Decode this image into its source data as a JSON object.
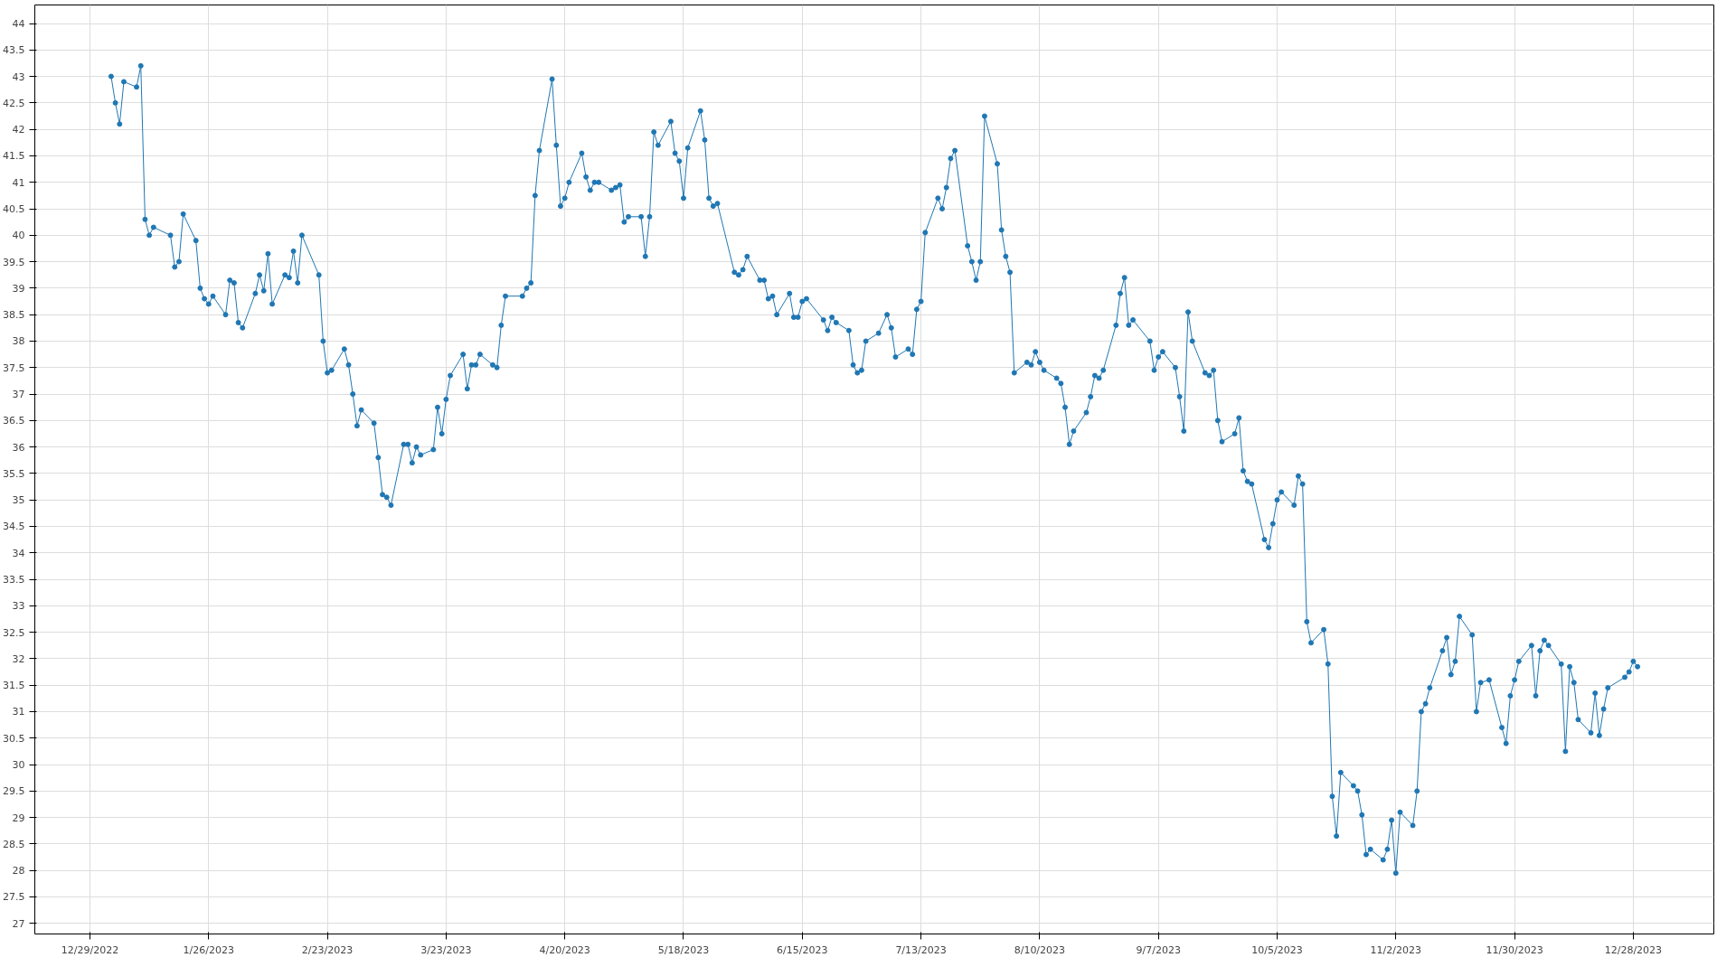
{
  "chart_data": {
    "type": "line",
    "marker": "circle",
    "line_style": "solid",
    "grid": true,
    "color": "#1f77b4",
    "xlim": [
      "2022-12-16",
      "2024-01-16"
    ],
    "ylim": [
      26.8,
      44.35
    ],
    "xticks": [
      {
        "value": "2022-12-29",
        "label": "12/29/2022"
      },
      {
        "value": "2023-01-26",
        "label": "1/26/2023"
      },
      {
        "value": "2023-02-23",
        "label": "2/23/2023"
      },
      {
        "value": "2023-03-23",
        "label": "3/23/2023"
      },
      {
        "value": "2023-04-20",
        "label": "4/20/2023"
      },
      {
        "value": "2023-05-18",
        "label": "5/18/2023"
      },
      {
        "value": "2023-06-15",
        "label": "6/15/2023"
      },
      {
        "value": "2023-07-13",
        "label": "7/13/2023"
      },
      {
        "value": "2023-08-10",
        "label": "8/10/2023"
      },
      {
        "value": "2023-09-07",
        "label": "9/7/2023"
      },
      {
        "value": "2023-10-05",
        "label": "10/5/2023"
      },
      {
        "value": "2023-11-02",
        "label": "11/2/2023"
      },
      {
        "value": "2023-11-30",
        "label": "11/30/2023"
      },
      {
        "value": "2023-12-28",
        "label": "12/28/2023"
      }
    ],
    "yticks": [
      27,
      27.5,
      28,
      28.5,
      29,
      29.5,
      30,
      30.5,
      31,
      31.5,
      32,
      32.5,
      33,
      33.5,
      34,
      34.5,
      35,
      35.5,
      36,
      36.5,
      37,
      37.5,
      38,
      38.5,
      39,
      39.5,
      40,
      40.5,
      41,
      41.5,
      42,
      42.5,
      43,
      43.5,
      44
    ],
    "x": [
      "2023-01-03",
      "2023-01-04",
      "2023-01-05",
      "2023-01-06",
      "2023-01-09",
      "2023-01-10",
      "2023-01-11",
      "2023-01-12",
      "2023-01-13",
      "2023-01-17",
      "2023-01-18",
      "2023-01-19",
      "2023-01-20",
      "2023-01-23",
      "2023-01-24",
      "2023-01-25",
      "2023-01-26",
      "2023-01-27",
      "2023-01-30",
      "2023-01-31",
      "2023-02-01",
      "2023-02-02",
      "2023-02-03",
      "2023-02-06",
      "2023-02-07",
      "2023-02-08",
      "2023-02-09",
      "2023-02-10",
      "2023-02-13",
      "2023-02-14",
      "2023-02-15",
      "2023-02-16",
      "2023-02-17",
      "2023-02-21",
      "2023-02-22",
      "2023-02-23",
      "2023-02-24",
      "2023-02-27",
      "2023-02-28",
      "2023-03-01",
      "2023-03-02",
      "2023-03-03",
      "2023-03-06",
      "2023-03-07",
      "2023-03-08",
      "2023-03-09",
      "2023-03-10",
      "2023-03-13",
      "2023-03-14",
      "2023-03-15",
      "2023-03-16",
      "2023-03-17",
      "2023-03-20",
      "2023-03-21",
      "2023-03-22",
      "2023-03-23",
      "2023-03-24",
      "2023-03-27",
      "2023-03-28",
      "2023-03-29",
      "2023-03-30",
      "2023-03-31",
      "2023-04-03",
      "2023-04-04",
      "2023-04-05",
      "2023-04-06",
      "2023-04-10",
      "2023-04-11",
      "2023-04-12",
      "2023-04-13",
      "2023-04-14",
      "2023-04-17",
      "2023-04-18",
      "2023-04-19",
      "2023-04-20",
      "2023-04-21",
      "2023-04-24",
      "2023-04-25",
      "2023-04-26",
      "2023-04-27",
      "2023-04-28",
      "2023-05-01",
      "2023-05-02",
      "2023-05-03",
      "2023-05-04",
      "2023-05-05",
      "2023-05-08",
      "2023-05-09",
      "2023-05-10",
      "2023-05-11",
      "2023-05-12",
      "2023-05-15",
      "2023-05-16",
      "2023-05-17",
      "2023-05-18",
      "2023-05-19",
      "2023-05-22",
      "2023-05-23",
      "2023-05-24",
      "2023-05-25",
      "2023-05-26",
      "2023-05-30",
      "2023-05-31",
      "2023-06-01",
      "2023-06-02",
      "2023-06-05",
      "2023-06-06",
      "2023-06-07",
      "2023-06-08",
      "2023-06-09",
      "2023-06-12",
      "2023-06-13",
      "2023-06-14",
      "2023-06-15",
      "2023-06-16",
      "2023-06-20",
      "2023-06-21",
      "2023-06-22",
      "2023-06-23",
      "2023-06-26",
      "2023-06-27",
      "2023-06-28",
      "2023-06-29",
      "2023-06-30",
      "2023-07-03",
      "2023-07-05",
      "2023-07-06",
      "2023-07-07",
      "2023-07-10",
      "2023-07-11",
      "2023-07-12",
      "2023-07-13",
      "2023-07-14",
      "2023-07-17",
      "2023-07-18",
      "2023-07-19",
      "2023-07-20",
      "2023-07-21",
      "2023-07-24",
      "2023-07-25",
      "2023-07-26",
      "2023-07-27",
      "2023-07-28",
      "2023-07-31",
      "2023-08-01",
      "2023-08-02",
      "2023-08-03",
      "2023-08-04",
      "2023-08-07",
      "2023-08-08",
      "2023-08-09",
      "2023-08-10",
      "2023-08-11",
      "2023-08-14",
      "2023-08-15",
      "2023-08-16",
      "2023-08-17",
      "2023-08-18",
      "2023-08-21",
      "2023-08-22",
      "2023-08-23",
      "2023-08-24",
      "2023-08-25",
      "2023-08-28",
      "2023-08-29",
      "2023-08-30",
      "2023-08-31",
      "2023-09-01",
      "2023-09-05",
      "2023-09-06",
      "2023-09-07",
      "2023-09-08",
      "2023-09-11",
      "2023-09-12",
      "2023-09-13",
      "2023-09-14",
      "2023-09-15",
      "2023-09-18",
      "2023-09-19",
      "2023-09-20",
      "2023-09-21",
      "2023-09-22",
      "2023-09-25",
      "2023-09-26",
      "2023-09-27",
      "2023-09-28",
      "2023-09-29",
      "2023-10-02",
      "2023-10-03",
      "2023-10-04",
      "2023-10-05",
      "2023-10-06",
      "2023-10-09",
      "2023-10-10",
      "2023-10-11",
      "2023-10-12",
      "2023-10-13",
      "2023-10-16",
      "2023-10-17",
      "2023-10-18",
      "2023-10-19",
      "2023-10-20",
      "2023-10-23",
      "2023-10-24",
      "2023-10-25",
      "2023-10-26",
      "2023-10-27",
      "2023-10-30",
      "2023-10-31",
      "2023-11-01",
      "2023-11-02",
      "2023-11-03",
      "2023-11-06",
      "2023-11-07",
      "2023-11-08",
      "2023-11-09",
      "2023-11-10",
      "2023-11-13",
      "2023-11-14",
      "2023-11-15",
      "2023-11-16",
      "2023-11-17",
      "2023-11-20",
      "2023-11-21",
      "2023-11-22",
      "2023-11-24",
      "2023-11-27",
      "2023-11-28",
      "2023-11-29",
      "2023-11-30",
      "2023-12-01",
      "2023-12-04",
      "2023-12-05",
      "2023-12-06",
      "2023-12-07",
      "2023-12-08",
      "2023-12-11",
      "2023-12-12",
      "2023-12-13",
      "2023-12-14",
      "2023-12-15",
      "2023-12-18",
      "2023-12-19",
      "2023-12-20",
      "2023-12-21",
      "2023-12-22",
      "2023-12-26",
      "2023-12-27",
      "2023-12-28",
      "2023-12-29"
    ],
    "values": [
      43.0,
      42.5,
      42.1,
      42.9,
      42.8,
      43.2,
      40.3,
      40.0,
      40.15,
      40.0,
      39.4,
      39.5,
      40.4,
      39.9,
      39.0,
      38.8,
      38.7,
      38.85,
      38.5,
      39.15,
      39.1,
      38.35,
      38.25,
      38.9,
      39.25,
      38.95,
      39.65,
      38.7,
      39.25,
      39.2,
      39.7,
      39.1,
      40.0,
      39.25,
      38.0,
      37.4,
      37.45,
      37.85,
      37.55,
      37.0,
      36.4,
      36.7,
      36.45,
      35.8,
      35.1,
      35.05,
      34.9,
      36.05,
      36.05,
      35.7,
      36.0,
      35.85,
      35.95,
      36.75,
      36.25,
      36.9,
      37.35,
      37.75,
      37.1,
      37.55,
      37.55,
      37.75,
      37.55,
      37.5,
      38.3,
      38.85,
      38.85,
      39.0,
      39.1,
      40.75,
      41.6,
      42.95,
      41.7,
      40.55,
      40.7,
      41.0,
      41.55,
      41.1,
      40.85,
      41.0,
      41.0,
      40.85,
      40.9,
      40.95,
      40.25,
      40.35,
      40.35,
      39.6,
      40.35,
      41.95,
      41.7,
      42.15,
      41.55,
      41.4,
      40.7,
      41.65,
      42.35,
      41.8,
      40.7,
      40.55,
      40.6,
      39.3,
      39.25,
      39.35,
      39.6,
      39.15,
      39.15,
      38.8,
      38.85,
      38.5,
      38.9,
      38.45,
      38.45,
      38.75,
      38.8,
      38.4,
      38.2,
      38.45,
      38.35,
      38.2,
      37.55,
      37.4,
      37.45,
      38.0,
      38.15,
      38.5,
      38.25,
      37.7,
      37.85,
      37.75,
      38.6,
      38.75,
      40.05,
      40.7,
      40.5,
      40.9,
      41.45,
      41.6,
      39.8,
      39.5,
      39.15,
      39.5,
      42.25,
      41.35,
      40.1,
      39.6,
      39.3,
      37.4,
      37.6,
      37.55,
      37.8,
      37.6,
      37.45,
      37.3,
      37.2,
      36.75,
      36.05,
      36.3,
      36.65,
      36.95,
      37.35,
      37.3,
      37.45,
      38.3,
      38.9,
      39.2,
      38.3,
      38.4,
      38.0,
      37.45,
      37.7,
      37.8,
      37.5,
      36.95,
      36.3,
      38.55,
      38.0,
      37.4,
      37.35,
      37.45,
      36.5,
      36.1,
      36.25,
      36.55,
      35.55,
      35.35,
      35.3,
      34.25,
      34.1,
      34.55,
      35.0,
      35.15,
      34.9,
      35.45,
      35.3,
      32.7,
      32.3,
      32.55,
      31.9,
      29.4,
      28.65,
      29.85,
      29.6,
      29.5,
      29.05,
      28.3,
      28.4,
      28.2,
      28.4,
      28.95,
      27.95,
      29.1,
      28.85,
      29.5,
      31.0,
      31.15,
      31.45,
      32.15,
      32.4,
      31.7,
      31.95,
      32.8,
      32.45,
      31.0,
      31.55,
      31.6,
      30.7,
      30.4,
      31.3,
      31.6,
      31.95,
      32.25,
      31.3,
      32.15,
      32.35,
      32.25,
      31.9,
      30.25,
      31.85,
      31.55,
      30.85,
      30.6,
      31.35,
      30.55,
      31.05,
      31.45,
      31.65,
      31.75,
      31.95,
      31.85
    ]
  }
}
